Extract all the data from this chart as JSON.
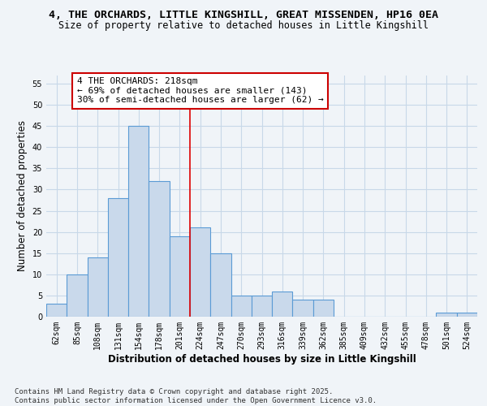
{
  "title_line1": "4, THE ORCHARDS, LITTLE KINGSHILL, GREAT MISSENDEN, HP16 0EA",
  "title_line2": "Size of property relative to detached houses in Little Kingshill",
  "xlabel": "Distribution of detached houses by size in Little Kingshill",
  "ylabel": "Number of detached properties",
  "categories": [
    "62sqm",
    "85sqm",
    "108sqm",
    "131sqm",
    "154sqm",
    "178sqm",
    "201sqm",
    "224sqm",
    "247sqm",
    "270sqm",
    "293sqm",
    "316sqm",
    "339sqm",
    "362sqm",
    "385sqm",
    "409sqm",
    "432sqm",
    "455sqm",
    "478sqm",
    "501sqm",
    "524sqm"
  ],
  "values": [
    3,
    10,
    14,
    28,
    45,
    32,
    19,
    21,
    15,
    5,
    5,
    6,
    4,
    4,
    0,
    0,
    0,
    0,
    0,
    1,
    1
  ],
  "bar_color": "#c9d9eb",
  "bar_edge_color": "#5b9bd5",
  "vline_color": "#dd0000",
  "vline_x": 6.5,
  "annotation_text": "4 THE ORCHARDS: 218sqm\n← 69% of detached houses are smaller (143)\n30% of semi-detached houses are larger (62) →",
  "annotation_box_facecolor": "#ffffff",
  "annotation_box_edgecolor": "#cc0000",
  "ylim_max": 57,
  "yticks": [
    0,
    5,
    10,
    15,
    20,
    25,
    30,
    35,
    40,
    45,
    50,
    55
  ],
  "footer_text": "Contains HM Land Registry data © Crown copyright and database right 2025.\nContains public sector information licensed under the Open Government Licence v3.0.",
  "bg_color": "#f0f4f8",
  "grid_color": "#c8d8e8",
  "title_fontsize": 9.5,
  "subtitle_fontsize": 8.5,
  "axis_label_fontsize": 8.5,
  "tick_fontsize": 7,
  "annotation_fontsize": 8,
  "footer_fontsize": 6.5
}
